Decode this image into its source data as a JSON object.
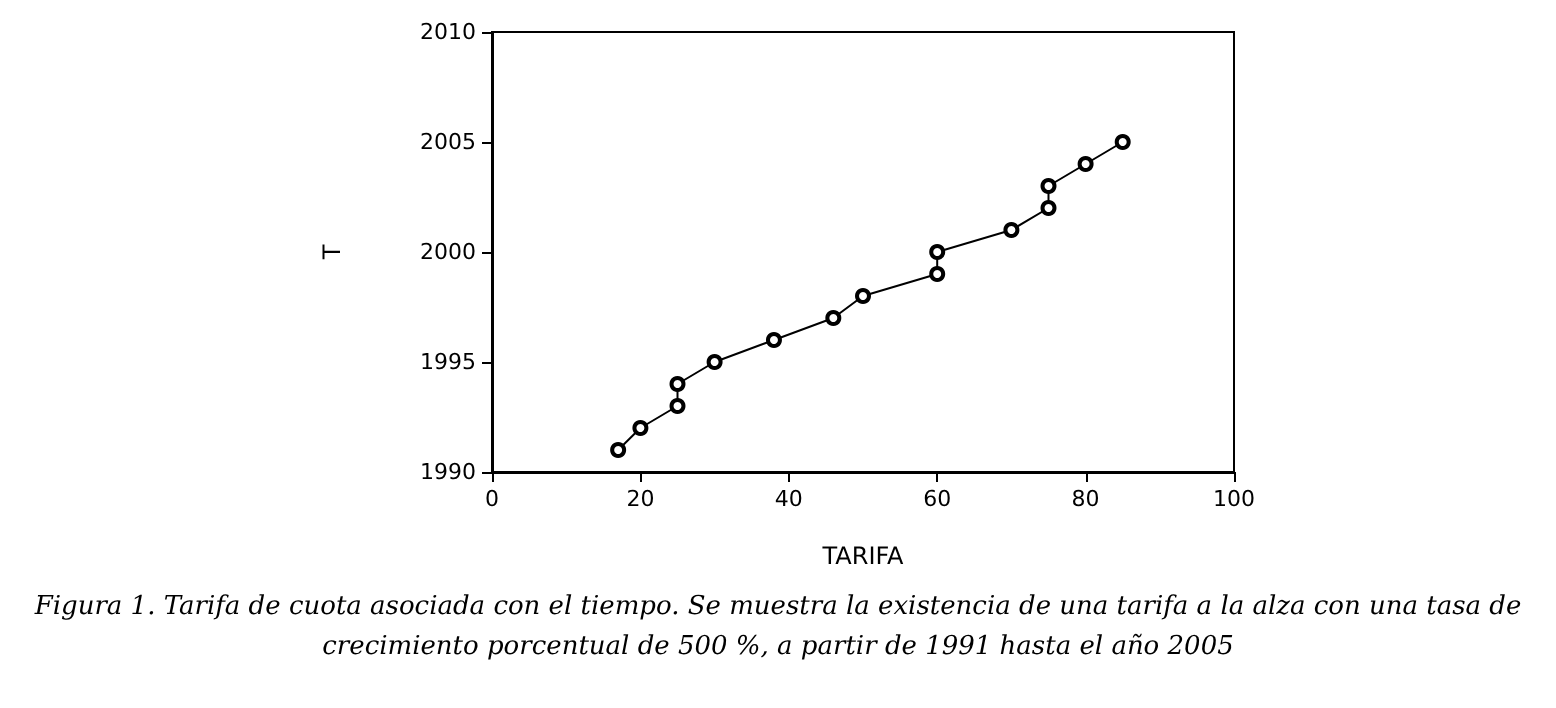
{
  "chart_data": {
    "type": "line",
    "xlabel": "TARIFA",
    "ylabel": "T",
    "x": [
      17,
      20,
      25,
      25,
      30,
      38,
      46,
      50,
      60,
      60,
      70,
      75,
      75,
      80,
      85
    ],
    "values": [
      1991,
      1992,
      1993,
      1994,
      1995,
      1996,
      1997,
      1998,
      1999,
      2000,
      2001,
      2002,
      2003,
      2004,
      2005
    ],
    "color": "#000000",
    "marker": "circle",
    "line_style": "solid",
    "grid": false,
    "xlim": [
      0,
      100
    ],
    "xticks": [
      0,
      20,
      40,
      60,
      80,
      100
    ],
    "ylim": [
      1990,
      2010
    ],
    "yticks": [
      1990,
      1995,
      2000,
      2005,
      2010
    ],
    "annotations": [
      "Figura 1. Tarifa de cuota asociada con el tiempo. Se muestra la existencia de una tarifa a la alza con una tasa de crecimiento porcentual de 500 %, a partir de 1991 hasta el año 2005"
    ]
  }
}
